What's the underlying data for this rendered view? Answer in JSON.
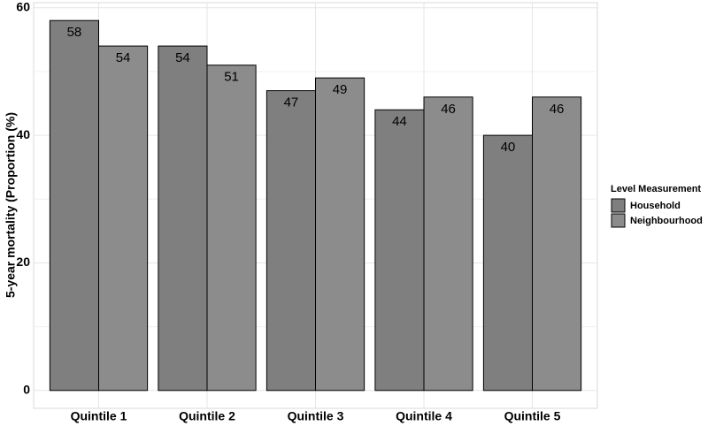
{
  "chart_data": {
    "type": "bar",
    "y_label": "5-year mortality (Proportion (%)",
    "categories": [
      "Quintile 1",
      "Quintile 2",
      "Quintile 3",
      "Quintile 4",
      "Quintile 5"
    ],
    "series": [
      {
        "name": "Household",
        "color": "#7f7f7f",
        "values": [
          58,
          54,
          47,
          44,
          40
        ]
      },
      {
        "name": "Neighbourhood",
        "color": "#8c8c8c",
        "values": [
          54,
          51,
          49,
          46,
          46
        ]
      }
    ],
    "ylim": [
      -2.8,
      60.8
    ],
    "yticks": [
      0,
      20,
      40,
      60
    ],
    "minor_yticks": [
      10,
      30,
      50
    ],
    "grid": true,
    "legend_title": "Level Measurement",
    "legend_position": "right"
  }
}
